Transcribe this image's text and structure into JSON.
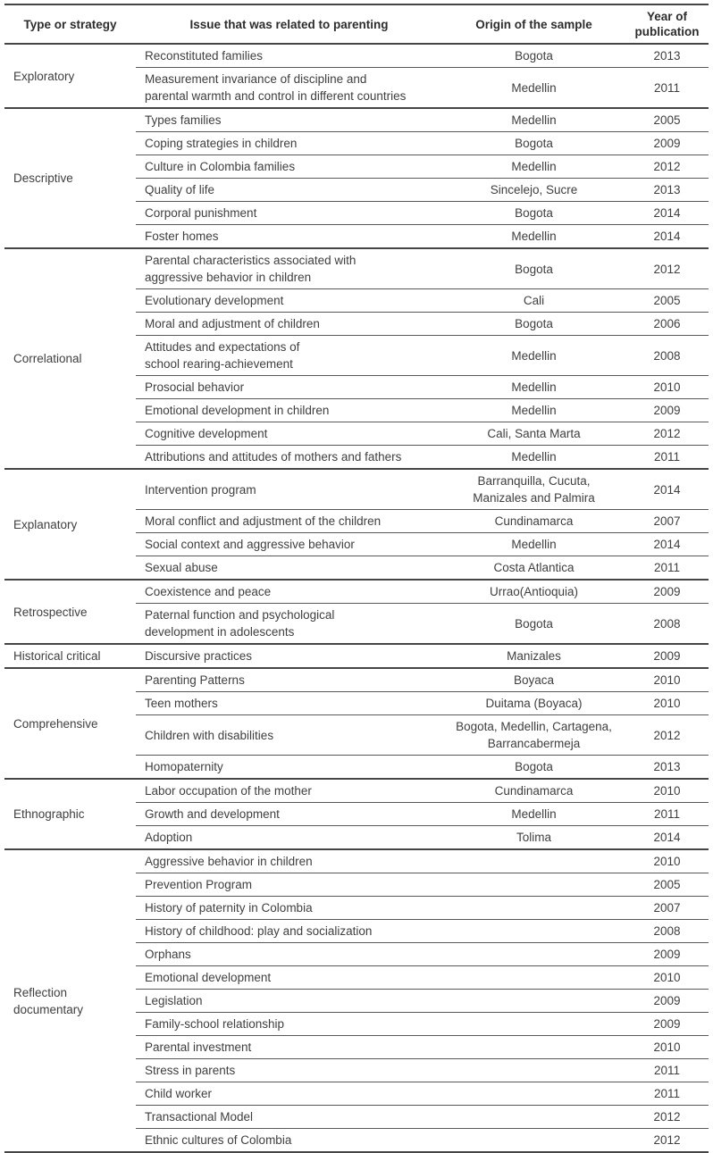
{
  "colors": {
    "background": "#ffffff",
    "text": "#3f3f3f",
    "header_text": "#2d2d2d",
    "rule_thick": "#454545",
    "rule_thin": "#585858"
  },
  "table": {
    "columns": [
      "Type or strategy",
      "Issue that was related to parenting",
      "Origin of the sample",
      "Year of publication"
    ],
    "groups": [
      {
        "type": "Exploratory",
        "rows": [
          {
            "issue": "Reconstituted families",
            "origin": "Bogota",
            "year": "2013"
          },
          {
            "issue": "Measurement invariance of discipline and\nparental warmth and control in different countries",
            "origin": "Medellin",
            "year": "2011"
          }
        ]
      },
      {
        "type": "Descriptive",
        "rows": [
          {
            "issue": "Types families",
            "origin": "Medellin",
            "year": "2005"
          },
          {
            "issue": "Coping strategies in children",
            "origin": "Bogota",
            "year": "2009"
          },
          {
            "issue": "Culture in Colombia families",
            "origin": "Medellin",
            "year": "2012"
          },
          {
            "issue": "Quality of life",
            "origin": "Sincelejo, Sucre",
            "year": "2013"
          },
          {
            "issue": "Corporal punishment",
            "origin": "Bogota",
            "year": "2014"
          },
          {
            "issue": "Foster homes",
            "origin": "Medellin",
            "year": "2014"
          }
        ]
      },
      {
        "type": "Correlational",
        "rows": [
          {
            "issue": "Parental characteristics associated with\naggressive behavior in children",
            "origin": "Bogota",
            "year": "2012"
          },
          {
            "issue": "Evolutionary development",
            "origin": "Cali",
            "year": "2005"
          },
          {
            "issue": "Moral and adjustment of children",
            "origin": "Bogota",
            "year": "2006"
          },
          {
            "issue": "Attitudes and expectations of\nschool rearing-achievement",
            "origin": "Medellin",
            "year": "2008"
          },
          {
            "issue": "Prosocial behavior",
            "origin": "Medellin",
            "year": "2010"
          },
          {
            "issue": "Emotional development in children",
            "origin": "Medellin",
            "year": "2009"
          },
          {
            "issue": "Cognitive development",
            "origin": "Cali, Santa Marta",
            "year": "2012"
          },
          {
            "issue": "Attributions and attitudes of mothers and fathers",
            "origin": "Medellin",
            "year": "2011"
          }
        ]
      },
      {
        "type": "Explanatory",
        "rows": [
          {
            "issue": "Intervention program",
            "origin": "Barranquilla, Cucuta,\nManizales and Palmira",
            "year": "2014"
          },
          {
            "issue": "Moral conflict and adjustment of the children",
            "origin": "Cundinamarca",
            "year": "2007"
          },
          {
            "issue": "Social context and aggressive behavior",
            "origin": "Medellin",
            "year": "2014"
          },
          {
            "issue": "Sexual abuse",
            "origin": "Costa Atlantica",
            "year": "2011"
          }
        ]
      },
      {
        "type": "Retrospective",
        "rows": [
          {
            "issue": "Coexistence and peace",
            "origin": "Urrao(Antioquia)",
            "year": "2009"
          },
          {
            "issue": "Paternal function and psychological\ndevelopment in adolescents",
            "origin": "Bogota",
            "year": "2008"
          }
        ]
      },
      {
        "type": "Historical critical",
        "rows": [
          {
            "issue": "Discursive practices",
            "origin": "Manizales",
            "year": "2009"
          }
        ]
      },
      {
        "type": "Comprehensive",
        "rows": [
          {
            "issue": "Parenting Patterns",
            "origin": "Boyaca",
            "year": "2010"
          },
          {
            "issue": "Teen mothers",
            "origin": "Duitama (Boyaca)",
            "year": "2010"
          },
          {
            "issue": "Children with disabilities",
            "origin": "Bogota, Medellin, Cartagena,\nBarrancabermeja",
            "year": "2012"
          },
          {
            "issue": "Homopaternity",
            "origin": "Bogota",
            "year": "2013"
          }
        ]
      },
      {
        "type": "Ethnographic",
        "rows": [
          {
            "issue": "Labor occupation of the mother",
            "origin": "Cundinamarca",
            "year": "2010"
          },
          {
            "issue": "Growth and development",
            "origin": "Medellin",
            "year": "2011"
          },
          {
            "issue": "Adoption",
            "origin": "Tolima",
            "year": "2014"
          }
        ]
      },
      {
        "type": "Reflection documentary",
        "rows": [
          {
            "issue": "Aggressive behavior in children",
            "origin": "",
            "year": "2010"
          },
          {
            "issue": "Prevention Program",
            "origin": "",
            "year": "2005"
          },
          {
            "issue": "History of paternity in Colombia",
            "origin": "",
            "year": "2007"
          },
          {
            "issue": "History of childhood: play and socialization",
            "origin": "",
            "year": "2008"
          },
          {
            "issue": "Orphans",
            "origin": "",
            "year": "2009"
          },
          {
            "issue": "Emotional development",
            "origin": "",
            "year": "2010"
          },
          {
            "issue": "Legislation",
            "origin": "",
            "year": "2009"
          },
          {
            "issue": "Family-school relationship",
            "origin": "",
            "year": "2009"
          },
          {
            "issue": "Parental investment",
            "origin": "",
            "year": "2010"
          },
          {
            "issue": "Stress in parents",
            "origin": "",
            "year": "2011"
          },
          {
            "issue": "Child worker",
            "origin": "",
            "year": "2011"
          },
          {
            "issue": "Transactional Model",
            "origin": "",
            "year": "2012"
          },
          {
            "issue": "Ethnic cultures of Colombia",
            "origin": "",
            "year": "2012"
          }
        ]
      }
    ]
  }
}
